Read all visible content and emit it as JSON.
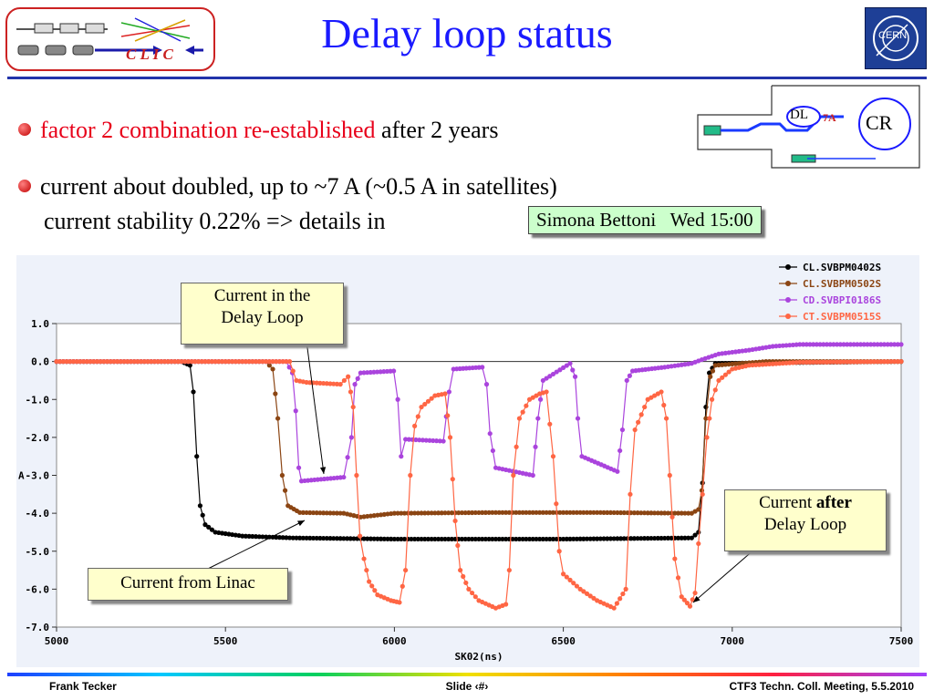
{
  "slide": {
    "title": "Delay loop status",
    "bullets": [
      {
        "red": "factor 2 combination re-established",
        "rest": " after 2 years"
      },
      {
        "line1": "current about doubled, up to ~7 A (~0.5 A in satellites)",
        "line2": "current stability 0.22% => details in"
      }
    ],
    "reference_box": "Simona Bettoni   Wed 15:00",
    "clic_logo_text": "C L I C",
    "cern_logo_text": "CERN",
    "diagram": {
      "dl": "DL",
      "current": "7A",
      "cr": "CR"
    }
  },
  "callouts": {
    "in_loop": [
      "Current in the",
      "Delay Loop"
    ],
    "after_loop_prefix": "Current ",
    "after_loop_bold": "after",
    "after_loop_line2": "Delay Loop",
    "from_linac": "Current from Linac"
  },
  "footer": {
    "left": "Frank Tecker",
    "center": "Slide ‹#›",
    "right": "CTF3 Techn. Coll. Meeting, 5.5.2010"
  },
  "chart_data": {
    "type": "line",
    "xlabel": "SK02(ns)",
    "ylabel": "A",
    "xlim": [
      5000,
      7500
    ],
    "ylim": [
      -7.0,
      1.0
    ],
    "xticks": [
      5000,
      5500,
      6000,
      6500,
      7000,
      7500
    ],
    "xtick_labels": [
      "5000",
      "5500",
      "6000",
      "6500",
      "7000",
      "7500"
    ],
    "yticks": [
      1.0,
      0.0,
      -1.0,
      -2.0,
      -3.0,
      -4.0,
      -5.0,
      -6.0,
      -7.0
    ],
    "ytick_labels": [
      "1.0",
      "0.0",
      "-1.0",
      "-2.0",
      "-3.0",
      "-4.0",
      "-5.0",
      "-6.0",
      "-7.0"
    ],
    "legend_position": "top-right",
    "series": [
      {
        "name": "CL.SVBPM0402S",
        "color": "#000000",
        "points": [
          [
            5000,
            0
          ],
          [
            5370,
            0
          ],
          [
            5395,
            -0.1
          ],
          [
            5405,
            -0.8
          ],
          [
            5415,
            -2.5
          ],
          [
            5425,
            -3.8
          ],
          [
            5440,
            -4.3
          ],
          [
            5470,
            -4.5
          ],
          [
            5550,
            -4.6
          ],
          [
            5700,
            -4.65
          ],
          [
            6000,
            -4.68
          ],
          [
            6500,
            -4.68
          ],
          [
            6880,
            -4.65
          ],
          [
            6900,
            -4.5
          ],
          [
            6912,
            -3.2
          ],
          [
            6922,
            -1.2
          ],
          [
            6932,
            -0.3
          ],
          [
            6950,
            -0.05
          ],
          [
            7500,
            0
          ]
        ]
      },
      {
        "name": "CL.SVBPM0502S",
        "color": "#8b4513",
        "points": [
          [
            5000,
            0
          ],
          [
            5620,
            0
          ],
          [
            5640,
            -0.2
          ],
          [
            5655,
            -1.5
          ],
          [
            5668,
            -3.0
          ],
          [
            5685,
            -3.8
          ],
          [
            5720,
            -3.98
          ],
          [
            5850,
            -4.0
          ],
          [
            5900,
            -4.1
          ],
          [
            6000,
            -4.0
          ],
          [
            6300,
            -3.98
          ],
          [
            6600,
            -3.98
          ],
          [
            6880,
            -4.0
          ],
          [
            6900,
            -3.9
          ],
          [
            6910,
            -3.4
          ],
          [
            6922,
            -1.5
          ],
          [
            6935,
            -0.4
          ],
          [
            6950,
            -0.1
          ],
          [
            7100,
            0
          ],
          [
            7500,
            0
          ]
        ]
      },
      {
        "name": "CD.SVBPI0186S",
        "color": "#aa44dd",
        "points": [
          [
            5000,
            0
          ],
          [
            5680,
            0
          ],
          [
            5698,
            -0.3
          ],
          [
            5708,
            -1.3
          ],
          [
            5717,
            -2.8
          ],
          [
            5725,
            -3.15
          ],
          [
            5850,
            -3.05
          ],
          [
            5873,
            -2.0
          ],
          [
            5883,
            -0.6
          ],
          [
            5900,
            -0.3
          ],
          [
            5998,
            -0.25
          ],
          [
            6010,
            -1.0
          ],
          [
            6020,
            -2.5
          ],
          [
            6033,
            -2.05
          ],
          [
            6145,
            -2.1
          ],
          [
            6162,
            -0.8
          ],
          [
            6175,
            -0.2
          ],
          [
            6260,
            -0.15
          ],
          [
            6273,
            -0.6
          ],
          [
            6283,
            -1.9
          ],
          [
            6300,
            -2.8
          ],
          [
            6410,
            -3.0
          ],
          [
            6425,
            -1.5
          ],
          [
            6440,
            -0.5
          ],
          [
            6520,
            -0.05
          ],
          [
            6535,
            -0.4
          ],
          [
            6543,
            -1.5
          ],
          [
            6555,
            -2.5
          ],
          [
            6660,
            -2.9
          ],
          [
            6675,
            -1.8
          ],
          [
            6688,
            -0.5
          ],
          [
            6705,
            -0.25
          ],
          [
            6800,
            -0.15
          ],
          [
            6880,
            -0.05
          ],
          [
            6910,
            0.05
          ],
          [
            6960,
            0.2
          ],
          [
            7050,
            0.3
          ],
          [
            7120,
            0.4
          ],
          [
            7200,
            0.45
          ],
          [
            7500,
            0.45
          ]
        ]
      },
      {
        "name": "CT.SVBPM0515S",
        "color": "#ff6644",
        "points": [
          [
            5000,
            0
          ],
          [
            5690,
            0
          ],
          [
            5710,
            -0.5
          ],
          [
            5740,
            -0.55
          ],
          [
            5840,
            -0.6
          ],
          [
            5863,
            -0.4
          ],
          [
            5878,
            -1.2
          ],
          [
            5888,
            -3.0
          ],
          [
            5898,
            -4.6
          ],
          [
            5910,
            -5.2
          ],
          [
            5925,
            -5.8
          ],
          [
            5950,
            -6.15
          ],
          [
            5990,
            -6.3
          ],
          [
            6015,
            -6.35
          ],
          [
            6033,
            -5.5
          ],
          [
            6047,
            -3.0
          ],
          [
            6060,
            -1.7
          ],
          [
            6080,
            -1.2
          ],
          [
            6120,
            -0.9
          ],
          [
            6150,
            -0.85
          ],
          [
            6165,
            -2.0
          ],
          [
            6180,
            -4.2
          ],
          [
            6195,
            -5.5
          ],
          [
            6220,
            -6.0
          ],
          [
            6250,
            -6.3
          ],
          [
            6300,
            -6.5
          ],
          [
            6330,
            -6.4
          ],
          [
            6340,
            -5.5
          ],
          [
            6352,
            -3.0
          ],
          [
            6370,
            -1.5
          ],
          [
            6400,
            -1.0
          ],
          [
            6430,
            -0.85
          ],
          [
            6450,
            -0.8
          ],
          [
            6470,
            -2.5
          ],
          [
            6488,
            -5.0
          ],
          [
            6500,
            -5.6
          ],
          [
            6550,
            -6.0
          ],
          [
            6600,
            -6.3
          ],
          [
            6650,
            -6.5
          ],
          [
            6685,
            -6.0
          ],
          [
            6698,
            -3.5
          ],
          [
            6712,
            -1.8
          ],
          [
            6750,
            -1.0
          ],
          [
            6790,
            -0.8
          ],
          [
            6805,
            -1.5
          ],
          [
            6815,
            -3.0
          ],
          [
            6830,
            -5.2
          ],
          [
            6850,
            -6.2
          ],
          [
            6875,
            -6.45
          ],
          [
            6890,
            -6.1
          ],
          [
            6900,
            -4.8
          ],
          [
            6912,
            -3.5
          ],
          [
            6925,
            -2.0
          ],
          [
            6940,
            -1.0
          ],
          [
            6960,
            -0.5
          ],
          [
            7000,
            -0.2
          ],
          [
            7050,
            -0.1
          ],
          [
            7200,
            -0.02
          ],
          [
            7500,
            0
          ]
        ]
      }
    ]
  }
}
